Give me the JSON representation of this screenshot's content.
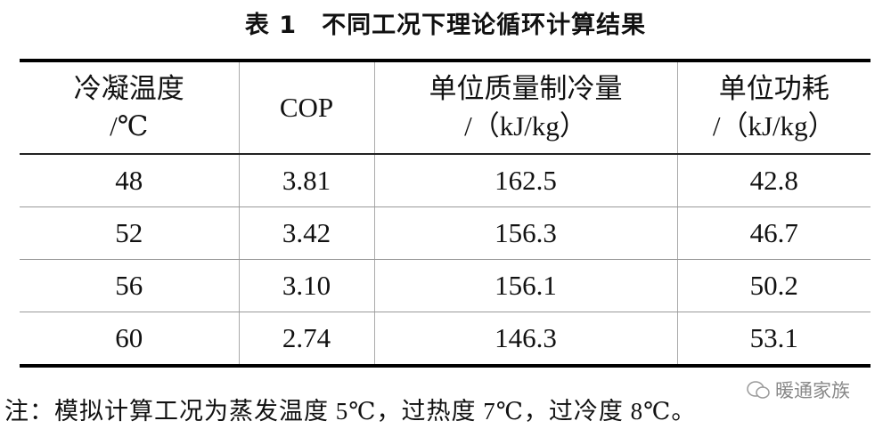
{
  "title": "表 1　不同工况下理论循环计算结果",
  "table": {
    "header": [
      [
        "冷凝温度",
        "/℃"
      ],
      [
        "COP"
      ],
      [
        "单位质量制冷量",
        "/（kJ/kg）"
      ],
      [
        "单位功耗",
        "/（kJ/kg）"
      ]
    ],
    "rows": [
      [
        "48",
        "3.81",
        "162.5",
        "42.8"
      ],
      [
        "52",
        "3.42",
        "156.3",
        "46.7"
      ],
      [
        "56",
        "3.10",
        "156.1",
        "50.2"
      ],
      [
        "60",
        "2.74",
        "146.3",
        "53.1"
      ]
    ]
  },
  "note": "注：模拟计算工况为蒸发温度 5℃，过热度 7℃，过冷度 8℃。",
  "watermark": "暖通家族"
}
